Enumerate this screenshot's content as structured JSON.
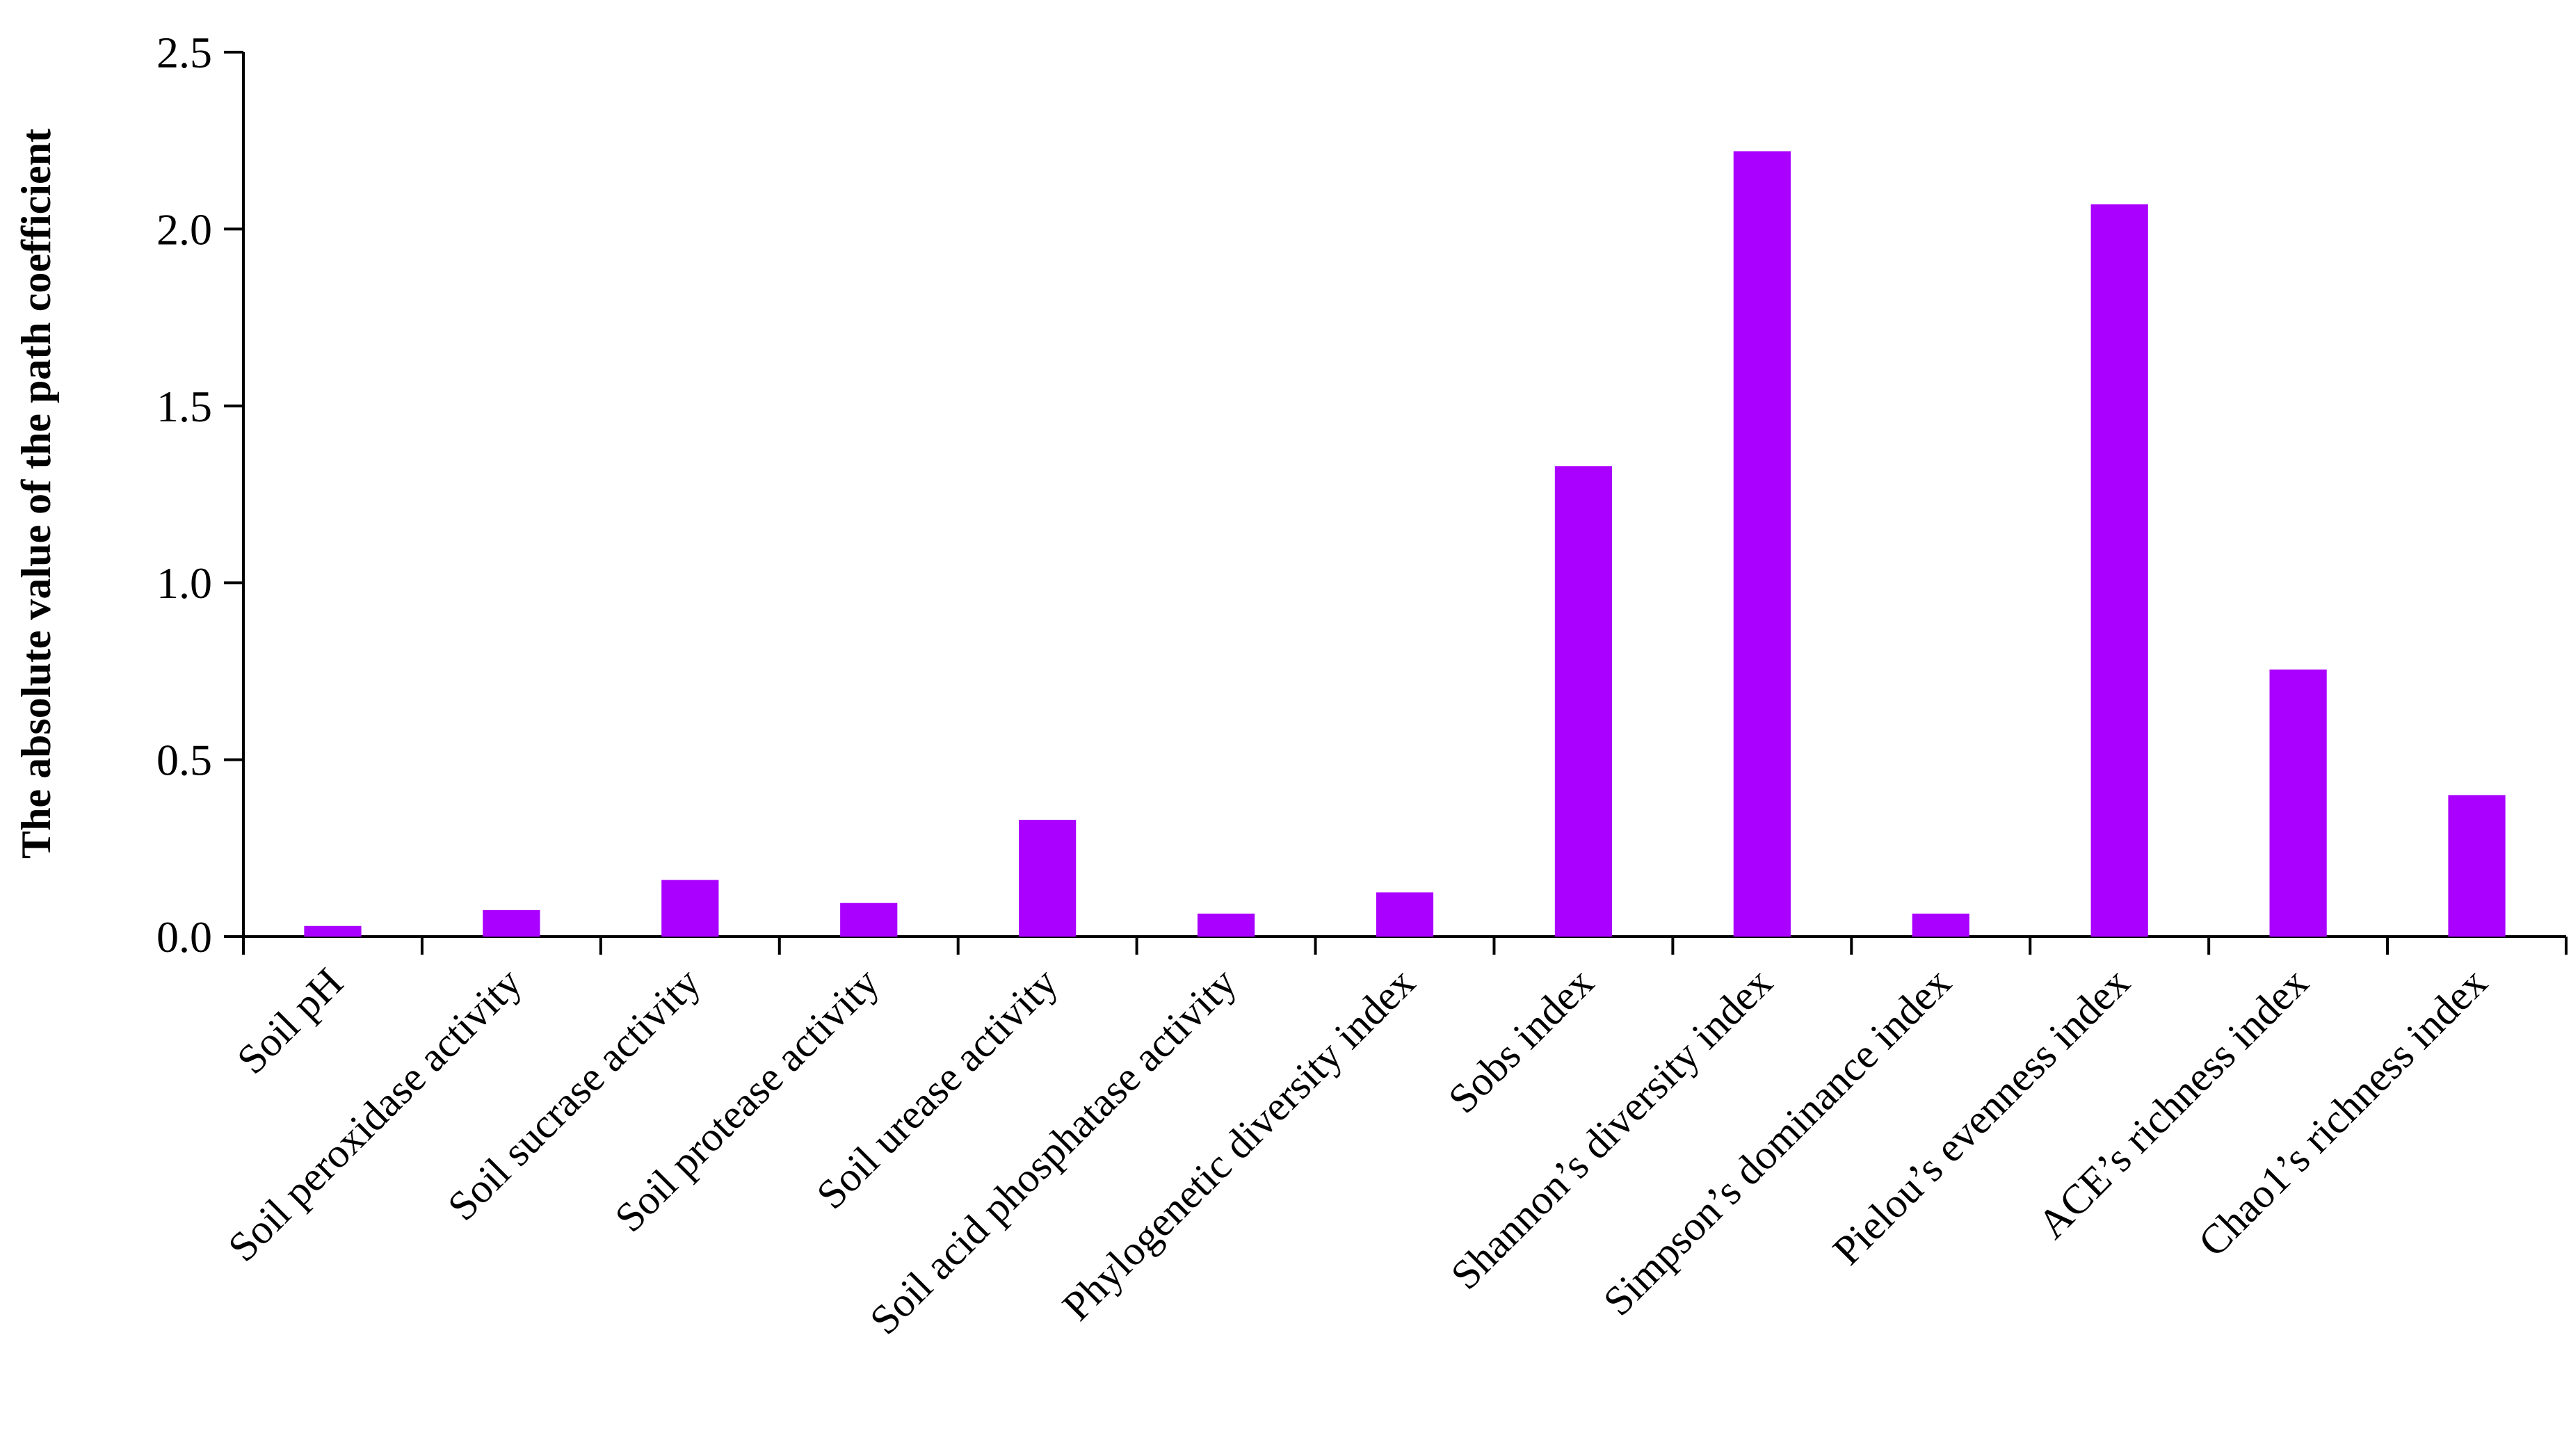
{
  "chart_data": {
    "type": "bar",
    "title": "",
    "xlabel": "",
    "ylabel": "The absolute value of the path coefficient",
    "ylim": [
      0,
      2.5
    ],
    "yticks": [
      "0.0",
      "0.5",
      "1.0",
      "1.5",
      "2.0",
      "2.5"
    ],
    "grid": false,
    "legend": "none",
    "bar_color": "#aa00ff",
    "categories": [
      "Soil pH",
      "Soil peroxidase activity",
      "Soil sucrase activity",
      "Soil protease activity",
      "Soil urease activity",
      "Soil acid phosphatase activity",
      "Phylogenetic diversity index",
      "Sobs index",
      "Shannon’s diversity index",
      "Simpson’s dominance index",
      "Pielou’s evenness index",
      "ACE’s richness index",
      "Chao1’s richness index"
    ],
    "values": [
      0.03,
      0.075,
      0.16,
      0.095,
      0.33,
      0.065,
      0.125,
      1.33,
      2.22,
      0.065,
      2.07,
      0.755,
      0.4
    ]
  }
}
